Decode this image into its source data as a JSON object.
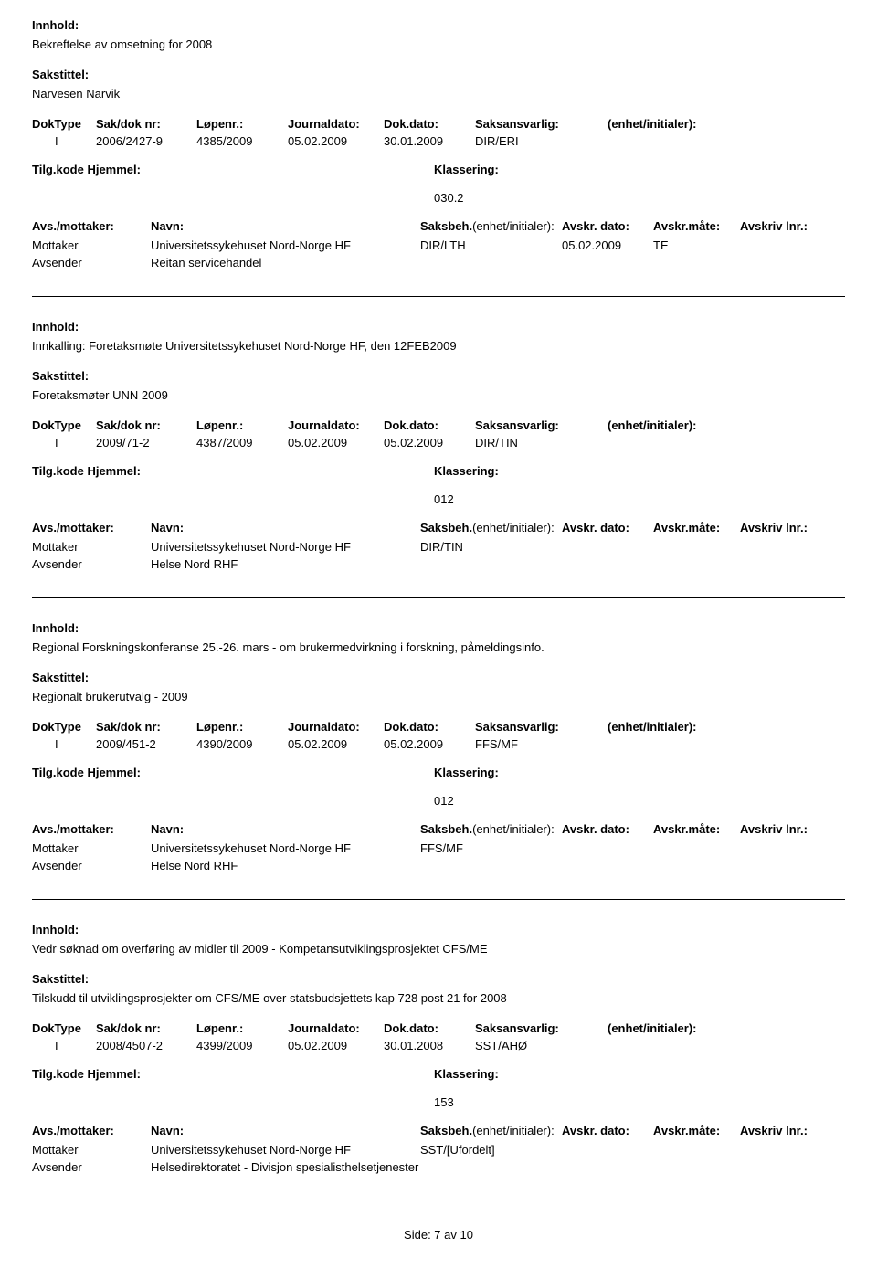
{
  "labels": {
    "innhold": "Innhold:",
    "sakstittel": "Sakstittel:",
    "doktype": "DokType",
    "saknr": "Sak/dok nr:",
    "lopenr": "Løpenr.:",
    "journaldato": "Journaldato:",
    "dokdato": "Dok.dato:",
    "saksansvarlig": "Saksansvarlig:",
    "enhet_init": "(enhet/initialer):",
    "tilgkode": "Tilg.kode",
    "hjemmel": "Hjemmel:",
    "klassering": "Klassering:",
    "avs_mottaker": "Avs./mottaker:",
    "navn": "Navn:",
    "saksbeh": "Saksbeh.",
    "avskr_dato": "Avskr. dato:",
    "avskr_mate": "Avskr.måte:",
    "avskriv_lnr": "Avskriv lnr.:",
    "mottaker": "Mottaker",
    "avsender": "Avsender"
  },
  "records": [
    {
      "innhold": "Bekreftelse av omsetning for 2008",
      "sakstittel": "Narvesen Narvik",
      "doktype": "I",
      "saknr": "2006/2427-9",
      "lopenr": "4385/2009",
      "journaldato": "05.02.2009",
      "dokdato": "30.01.2009",
      "saksansvarlig": "DIR/ERI",
      "klassering": "030.2",
      "rows": [
        {
          "role": "Mottaker",
          "navn": "Universitetssykehuset Nord-Norge HF",
          "saksbeh": "DIR/LTH",
          "avskrdato": "05.02.2009",
          "avskrmate": "TE"
        },
        {
          "role": "Avsender",
          "navn": "Reitan servicehandel",
          "saksbeh": "",
          "avskrdato": "",
          "avskrmate": ""
        }
      ]
    },
    {
      "innhold": "Innkalling: Foretaksmøte Universitetssykehuset Nord-Norge HF, den 12FEB2009",
      "sakstittel": "Foretaksmøter UNN  2009",
      "doktype": "I",
      "saknr": "2009/71-2",
      "lopenr": "4387/2009",
      "journaldato": "05.02.2009",
      "dokdato": "05.02.2009",
      "saksansvarlig": "DIR/TIN",
      "klassering": "012",
      "rows": [
        {
          "role": "Mottaker",
          "navn": "Universitetssykehuset Nord-Norge HF",
          "saksbeh": "DIR/TIN",
          "avskrdato": "",
          "avskrmate": ""
        },
        {
          "role": "Avsender",
          "navn": "Helse Nord RHF",
          "saksbeh": "",
          "avskrdato": "",
          "avskrmate": ""
        }
      ]
    },
    {
      "innhold": "Regional Forskningskonferanse 25.-26. mars - om brukermedvirkning i forskning,  påmeldingsinfo.",
      "sakstittel": "Regionalt brukerutvalg - 2009",
      "doktype": "I",
      "saknr": "2009/451-2",
      "lopenr": "4390/2009",
      "journaldato": "05.02.2009",
      "dokdato": "05.02.2009",
      "saksansvarlig": "FFS/MF",
      "klassering": "012",
      "rows": [
        {
          "role": "Mottaker",
          "navn": "Universitetssykehuset Nord-Norge HF",
          "saksbeh": "FFS/MF",
          "avskrdato": "",
          "avskrmate": ""
        },
        {
          "role": "Avsender",
          "navn": "Helse Nord RHF",
          "saksbeh": "",
          "avskrdato": "",
          "avskrmate": ""
        }
      ]
    },
    {
      "innhold": "Vedr søknad om overføring av midler til 2009 - Kompetansutviklingsprosjektet CFS/ME",
      "sakstittel": "Tilskudd til utviklingsprosjekter om CFS/ME over statsbudsjettets kap 728 post 21 for 2008",
      "doktype": "I",
      "saknr": "2008/4507-2",
      "lopenr": "4399/2009",
      "journaldato": "05.02.2009",
      "dokdato": "30.01.2008",
      "saksansvarlig": "SST/AHØ",
      "klassering": "153",
      "rows": [
        {
          "role": "Mottaker",
          "navn": "Universitetssykehuset Nord-Norge HF",
          "saksbeh": "SST/[Ufordelt]",
          "avskrdato": "",
          "avskrmate": ""
        },
        {
          "role": "Avsender",
          "navn": "Helsedirektoratet - Divisjon spesialisthelsetjenester",
          "saksbeh": "",
          "avskrdato": "",
          "avskrmate": ""
        }
      ]
    }
  ],
  "footer": "Side: 7 av 10"
}
